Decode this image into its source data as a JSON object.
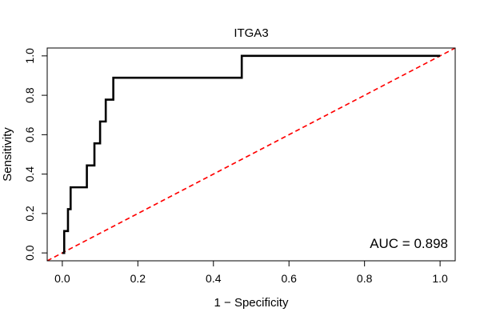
{
  "chart_data": {
    "type": "line",
    "title": "ITGA3",
    "xlabel": "1 − Specificity",
    "ylabel": "Sensitivity",
    "xlim": [
      -0.04,
      1.04
    ],
    "ylim": [
      -0.04,
      1.04
    ],
    "xticks": [
      0.0,
      0.2,
      0.4,
      0.6,
      0.8,
      1.0
    ],
    "xtick_labels": [
      "0.0",
      "0.2",
      "0.4",
      "0.6",
      "0.8",
      "1.0"
    ],
    "yticks": [
      0.0,
      0.2,
      0.4,
      0.6,
      0.8,
      1.0
    ],
    "ytick_labels": [
      "0.0",
      "0.2",
      "0.4",
      "0.6",
      "0.8",
      "1.0"
    ],
    "grid": false,
    "series": [
      {
        "color": "#000000",
        "style": "solid",
        "x": [
          0.0,
          0.005,
          0.005,
          0.015,
          0.015,
          0.022,
          0.022,
          0.065,
          0.065,
          0.085,
          0.085,
          0.1,
          0.1,
          0.115,
          0.115,
          0.135,
          0.135,
          0.475,
          0.475,
          1.0
        ],
        "y": [
          0.0,
          0.0,
          0.111,
          0.111,
          0.222,
          0.222,
          0.333,
          0.333,
          0.444,
          0.444,
          0.556,
          0.556,
          0.667,
          0.667,
          0.778,
          0.778,
          0.889,
          0.889,
          1.0,
          1.0
        ]
      },
      {
        "color": "#ff0000",
        "style": "dashed",
        "x": [
          -0.04,
          1.04
        ],
        "y": [
          -0.04,
          1.04
        ]
      }
    ],
    "annotations": [
      {
        "text": "AUC = 0.898",
        "position": "bottom-right"
      }
    ]
  }
}
